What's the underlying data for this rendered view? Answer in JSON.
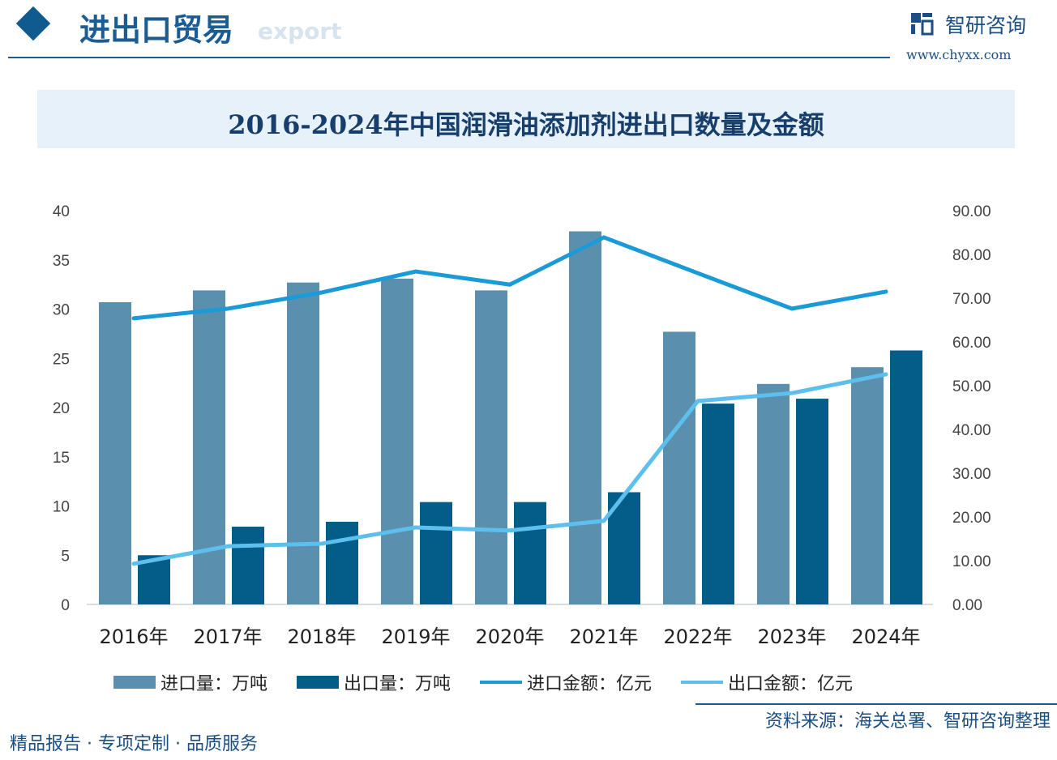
{
  "header": {
    "title": "进出口贸易",
    "subtitle": "export",
    "logo_text": "智研咨询",
    "logo_url": "www.chyxx.com",
    "accent": "#1b5d93"
  },
  "chart_data": {
    "type": "bar",
    "title": "2016-2024年中国润滑油添加剂进出口数量及金额",
    "categories": [
      "2016年",
      "2017年",
      "2018年",
      "2019年",
      "2020年",
      "2021年",
      "2022年",
      "2023年",
      "2024年"
    ],
    "y_left": {
      "min": 0,
      "max": 40,
      "ticks": [
        "0",
        "5",
        "10",
        "15",
        "20",
        "25",
        "30",
        "35",
        "40"
      ]
    },
    "y_right": {
      "min": 0,
      "max": 90,
      "ticks": [
        "0.00",
        "10.00",
        "20.00",
        "30.00",
        "40.00",
        "50.00",
        "60.00",
        "70.00",
        "80.00",
        "90.00"
      ]
    },
    "grid": false,
    "legend_position": "bottom",
    "series": [
      {
        "name": "进口量：万吨",
        "kind": "bar",
        "axis": "left",
        "color": "#5b8fae",
        "values": [
          30.7,
          31.9,
          32.7,
          33.1,
          31.9,
          37.9,
          27.7,
          22.4,
          24.1
        ]
      },
      {
        "name": "出口量：万吨",
        "kind": "bar",
        "axis": "left",
        "color": "#045d89",
        "values": [
          5.0,
          7.9,
          8.4,
          10.4,
          10.4,
          11.4,
          20.4,
          20.9,
          25.8
        ]
      },
      {
        "name": "进口金额：亿元",
        "kind": "line",
        "axis": "right",
        "color": "#1a9ad6",
        "values": [
          65.4,
          67.6,
          71.3,
          76.1,
          73.1,
          83.9,
          75.7,
          67.6,
          71.5
        ]
      },
      {
        "name": "出口金额：亿元",
        "kind": "line",
        "axis": "right",
        "color": "#5cbfee",
        "values": [
          9.3,
          13.3,
          13.9,
          17.6,
          16.9,
          19.1,
          46.5,
          48.3,
          52.6
        ]
      }
    ]
  },
  "footer": {
    "slogan": "精品报告 · 专项定制 · 品质服务",
    "source": "资料来源：海关总署、智研咨询整理"
  }
}
